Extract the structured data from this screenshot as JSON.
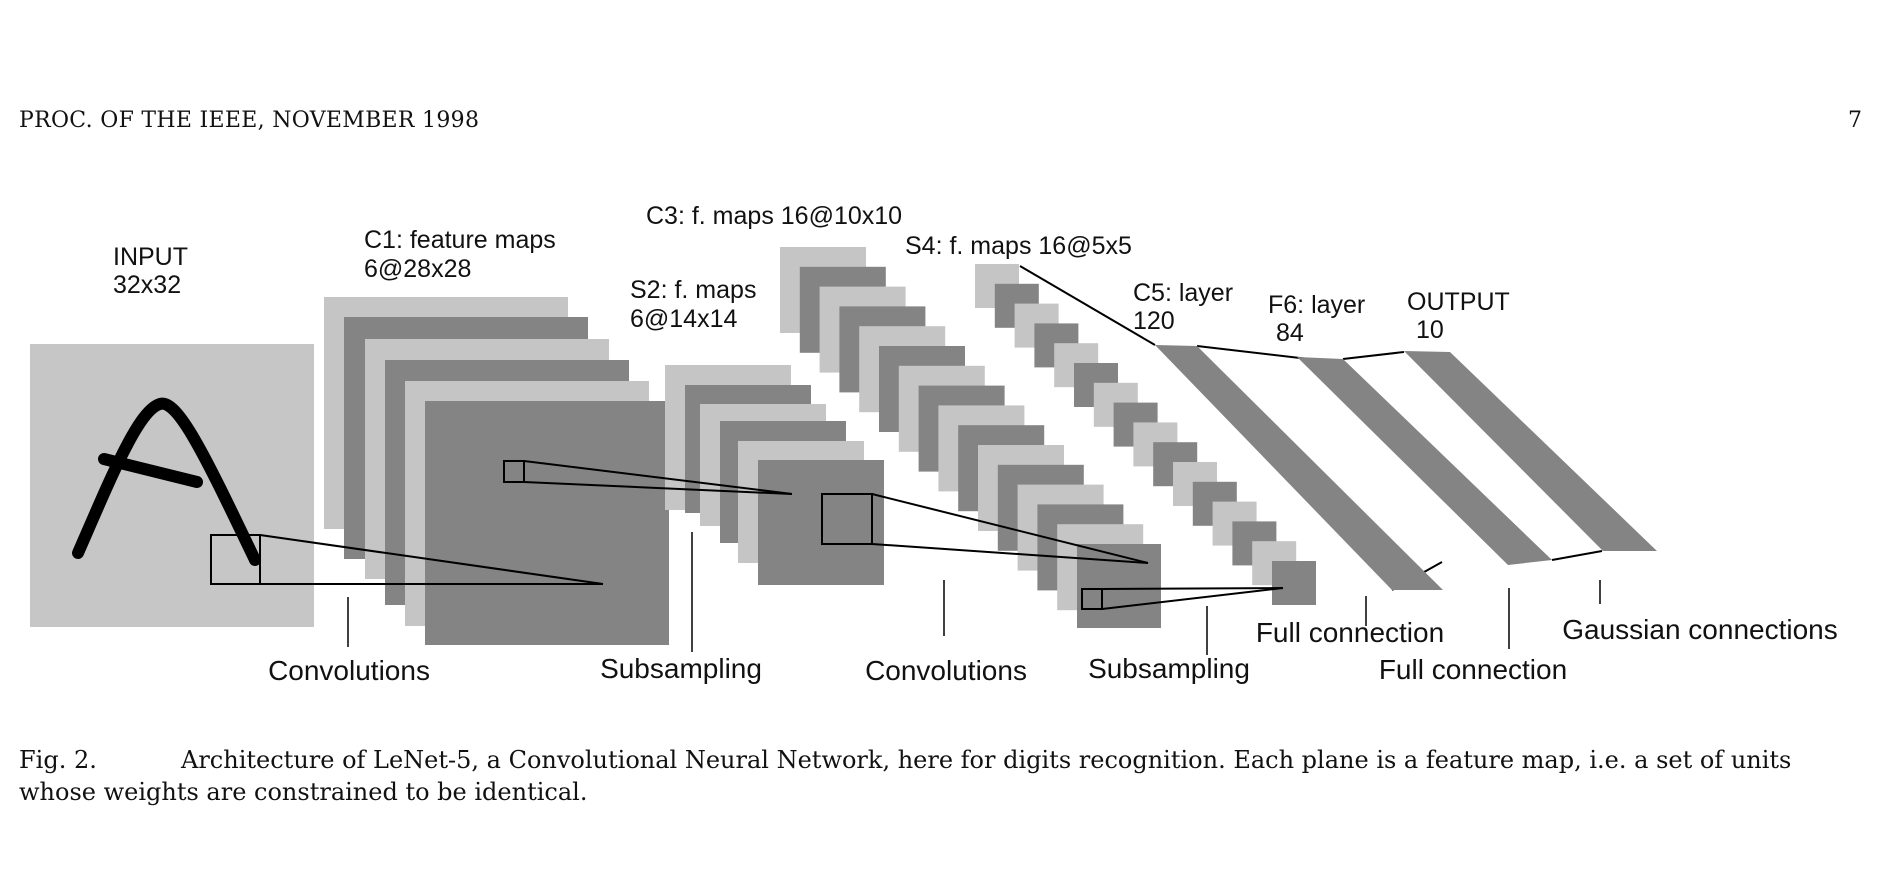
{
  "header": {
    "journal": "PROC. OF THE IEEE, NOVEMBER 1998",
    "page_number": "7"
  },
  "figure": {
    "layers": {
      "input": {
        "name": "INPUT",
        "size": "32x32"
      },
      "c1": {
        "name": "C1: feature maps",
        "size": "6@28x28"
      },
      "s2": {
        "name": "S2: f. maps",
        "size": "6@14x14"
      },
      "c3": {
        "name": "C3: f. maps 16@10x10"
      },
      "s4": {
        "name": "S4: f. maps 16@5x5"
      },
      "c5": {
        "name": "C5: layer",
        "size": "120"
      },
      "f6": {
        "name": "F6: layer",
        "size": "84"
      },
      "output": {
        "name": "OUTPUT",
        "size": "10"
      }
    },
    "operations": {
      "conv1": "Convolutions",
      "sub1": "Subsampling",
      "conv2": "Convolutions",
      "sub2": "Subsampling",
      "full1": "Full connection",
      "full2": "Full connection",
      "gauss": "Gaussian connections"
    },
    "colors": {
      "light_map": "#c5c5c5",
      "dark_map": "#848484",
      "input_bg": "#c6c6c6",
      "stroke": "#000000"
    }
  },
  "caption": {
    "label": "Fig. 2.",
    "text": "Architecture of LeNet-5, a Convolutional Neural Network, here for digits recognition. Each plane is a feature map, i.e. a set of units whose weights are constrained to be identical."
  }
}
